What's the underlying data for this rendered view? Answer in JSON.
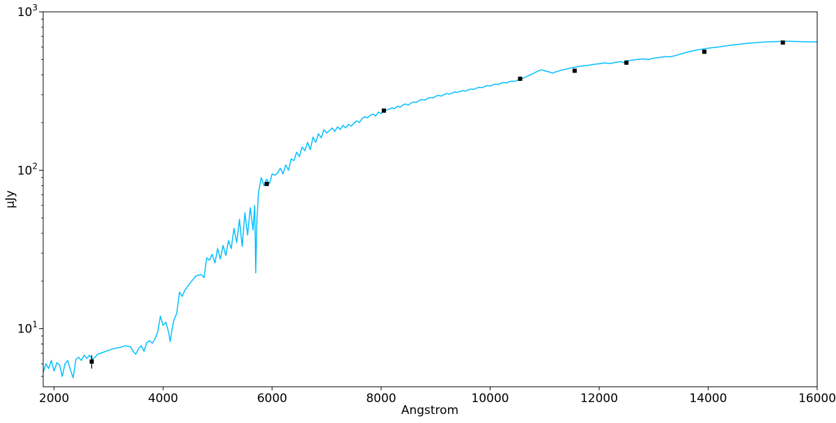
{
  "chart_data": {
    "type": "line",
    "xlabel": "Angstrom",
    "ylabel": "μJy",
    "xlim": [
      1800,
      16000
    ],
    "ylim": [
      4.3,
      1000
    ],
    "yscale": "log",
    "grid": false,
    "x_ticks": [
      {
        "value": 2000,
        "label": "2000"
      },
      {
        "value": 4000,
        "label": "4000"
      },
      {
        "value": 6000,
        "label": "6000"
      },
      {
        "value": 8000,
        "label": "8000"
      },
      {
        "value": 10000,
        "label": "10000"
      },
      {
        "value": 12000,
        "label": "12000"
      },
      {
        "value": 14000,
        "label": "14000"
      },
      {
        "value": 16000,
        "label": "16000"
      }
    ],
    "y_ticks": [
      {
        "value": 10,
        "base": "10",
        "exp": "1"
      },
      {
        "value": 100,
        "base": "10",
        "exp": "2"
      },
      {
        "value": 1000,
        "base": "10",
        "exp": "3"
      }
    ],
    "series": [
      {
        "kind": "line",
        "color": "#00bfff",
        "points": [
          [
            1800,
            5.3
          ],
          [
            1850,
            6.0
          ],
          [
            1900,
            5.6
          ],
          [
            1950,
            6.3
          ],
          [
            2000,
            5.4
          ],
          [
            2050,
            6.1
          ],
          [
            2100,
            5.9
          ],
          [
            2150,
            5.0
          ],
          [
            2200,
            6.0
          ],
          [
            2250,
            6.3
          ],
          [
            2300,
            5.5
          ],
          [
            2350,
            4.9
          ],
          [
            2400,
            6.4
          ],
          [
            2450,
            6.6
          ],
          [
            2500,
            6.3
          ],
          [
            2550,
            6.8
          ],
          [
            2600,
            6.5
          ],
          [
            2650,
            6.8
          ],
          [
            2700,
            6.4
          ],
          [
            2750,
            6.6
          ],
          [
            2800,
            6.9
          ],
          [
            2900,
            7.1
          ],
          [
            3000,
            7.3
          ],
          [
            3100,
            7.5
          ],
          [
            3200,
            7.6
          ],
          [
            3300,
            7.8
          ],
          [
            3400,
            7.7
          ],
          [
            3450,
            7.2
          ],
          [
            3500,
            6.9
          ],
          [
            3550,
            7.5
          ],
          [
            3600,
            7.8
          ],
          [
            3650,
            7.2
          ],
          [
            3700,
            8.2
          ],
          [
            3750,
            8.4
          ],
          [
            3800,
            8.1
          ],
          [
            3850,
            8.6
          ],
          [
            3900,
            9.5
          ],
          [
            3950,
            12.0
          ],
          [
            4000,
            10.5
          ],
          [
            4050,
            11.0
          ],
          [
            4100,
            9.5
          ],
          [
            4130,
            8.3
          ],
          [
            4170,
            10.2
          ],
          [
            4200,
            11.4
          ],
          [
            4250,
            12.5
          ],
          [
            4300,
            17.0
          ],
          [
            4350,
            16.0
          ],
          [
            4400,
            17.5
          ],
          [
            4500,
            19.5
          ],
          [
            4600,
            21.5
          ],
          [
            4700,
            22.0
          ],
          [
            4750,
            21.0
          ],
          [
            4800,
            28.0
          ],
          [
            4850,
            27.0
          ],
          [
            4900,
            29.5
          ],
          [
            4950,
            26.0
          ],
          [
            5000,
            32.0
          ],
          [
            5050,
            27.5
          ],
          [
            5100,
            33.5
          ],
          [
            5150,
            29.0
          ],
          [
            5200,
            36.0
          ],
          [
            5250,
            32.0
          ],
          [
            5300,
            43.0
          ],
          [
            5350,
            35.0
          ],
          [
            5400,
            49.0
          ],
          [
            5450,
            33.0
          ],
          [
            5500,
            54.0
          ],
          [
            5550,
            39.0
          ],
          [
            5600,
            58.0
          ],
          [
            5650,
            42.0
          ],
          [
            5680,
            60.0
          ],
          [
            5700,
            22.5
          ],
          [
            5720,
            48.0
          ],
          [
            5750,
            72.0
          ],
          [
            5800,
            90.0
          ],
          [
            5850,
            80.0
          ],
          [
            5900,
            88.0
          ],
          [
            5950,
            82.0
          ],
          [
            6000,
            95.0
          ],
          [
            6050,
            93.0
          ],
          [
            6100,
            96.0
          ],
          [
            6150,
            103.0
          ],
          [
            6200,
            95.0
          ],
          [
            6250,
            108.0
          ],
          [
            6300,
            100.0
          ],
          [
            6350,
            118.0
          ],
          [
            6400,
            115.0
          ],
          [
            6450,
            130.0
          ],
          [
            6500,
            122.0
          ],
          [
            6550,
            140.0
          ],
          [
            6600,
            133.0
          ],
          [
            6650,
            150.0
          ],
          [
            6700,
            135.0
          ],
          [
            6750,
            162.0
          ],
          [
            6800,
            150.0
          ],
          [
            6850,
            170.0
          ],
          [
            6900,
            160.0
          ],
          [
            6950,
            180.0
          ],
          [
            7000,
            172.0
          ],
          [
            7050,
            178.0
          ],
          [
            7100,
            185.0
          ],
          [
            7150,
            176.0
          ],
          [
            7200,
            188.0
          ],
          [
            7250,
            181.0
          ],
          [
            7300,
            192.0
          ],
          [
            7350,
            185.0
          ],
          [
            7400,
            195.0
          ],
          [
            7450,
            190.0
          ],
          [
            7500,
            198.0
          ],
          [
            7550,
            205.0
          ],
          [
            7600,
            200.0
          ],
          [
            7650,
            212.0
          ],
          [
            7700,
            218.0
          ],
          [
            7750,
            214.0
          ],
          [
            7800,
            222.0
          ],
          [
            7850,
            226.0
          ],
          [
            7900,
            220.0
          ],
          [
            7950,
            233.0
          ],
          [
            8000,
            228.0
          ],
          [
            8050,
            236.0
          ],
          [
            8100,
            240.0
          ],
          [
            8150,
            243.0
          ],
          [
            8200,
            248.0
          ],
          [
            8250,
            245.0
          ],
          [
            8300,
            254.0
          ],
          [
            8350,
            250.0
          ],
          [
            8400,
            259.0
          ],
          [
            8450,
            262.0
          ],
          [
            8500,
            258.0
          ],
          [
            8550,
            266.0
          ],
          [
            8600,
            270.0
          ],
          [
            8650,
            268.0
          ],
          [
            8700,
            276.0
          ],
          [
            8750,
            280.0
          ],
          [
            8800,
            277.0
          ],
          [
            8850,
            284.0
          ],
          [
            8900,
            288.0
          ],
          [
            8950,
            286.0
          ],
          [
            9000,
            293.0
          ],
          [
            9050,
            297.0
          ],
          [
            9100,
            294.0
          ],
          [
            9150,
            300.0
          ],
          [
            9200,
            305.0
          ],
          [
            9250,
            302.0
          ],
          [
            9300,
            308.0
          ],
          [
            9350,
            312.0
          ],
          [
            9400,
            310.0
          ],
          [
            9450,
            315.0
          ],
          [
            9500,
            318.0
          ],
          [
            9550,
            316.0
          ],
          [
            9600,
            322.0
          ],
          [
            9650,
            326.0
          ],
          [
            9700,
            324.0
          ],
          [
            9750,
            330.0
          ],
          [
            9800,
            334.0
          ],
          [
            9850,
            332.0
          ],
          [
            9900,
            338.0
          ],
          [
            9950,
            342.0
          ],
          [
            10000,
            340.0
          ],
          [
            10050,
            346.0
          ],
          [
            10100,
            350.0
          ],
          [
            10150,
            348.0
          ],
          [
            10200,
            354.0
          ],
          [
            10250,
            358.0
          ],
          [
            10300,
            356.0
          ],
          [
            10350,
            362.0
          ],
          [
            10400,
            366.0
          ],
          [
            10450,
            364.0
          ],
          [
            10500,
            370.0
          ],
          [
            10550,
            374.0
          ],
          [
            10600,
            380.0
          ],
          [
            10650,
            388.0
          ],
          [
            10700,
            395.0
          ],
          [
            10750,
            402.0
          ],
          [
            10800,
            410.0
          ],
          [
            10850,
            418.0
          ],
          [
            10900,
            426.0
          ],
          [
            10950,
            430.0
          ],
          [
            11000,
            425.0
          ],
          [
            11050,
            420.0
          ],
          [
            11100,
            416.0
          ],
          [
            11150,
            410.0
          ],
          [
            11200,
            418.0
          ],
          [
            11250,
            422.0
          ],
          [
            11300,
            428.0
          ],
          [
            11350,
            432.0
          ],
          [
            11400,
            435.0
          ],
          [
            11450,
            440.0
          ],
          [
            11500,
            444.0
          ],
          [
            11600,
            450.0
          ],
          [
            11700,
            456.0
          ],
          [
            11800,
            460.0
          ],
          [
            11900,
            466.0
          ],
          [
            12000,
            470.0
          ],
          [
            12100,
            476.0
          ],
          [
            12200,
            472.0
          ],
          [
            12300,
            480.0
          ],
          [
            12400,
            485.0
          ],
          [
            12450,
            478.0
          ],
          [
            12500,
            490.0
          ],
          [
            12600,
            495.0
          ],
          [
            12700,
            500.0
          ],
          [
            12800,
            505.0
          ],
          [
            12900,
            500.0
          ],
          [
            13000,
            510.0
          ],
          [
            13100,
            515.0
          ],
          [
            13200,
            522.0
          ],
          [
            13300,
            520.0
          ],
          [
            13400,
            530.0
          ],
          [
            13500,
            542.0
          ],
          [
            13600,
            555.0
          ],
          [
            13700,
            565.0
          ],
          [
            13800,
            575.0
          ],
          [
            13900,
            582.0
          ],
          [
            14000,
            590.0
          ],
          [
            14100,
            595.0
          ],
          [
            14200,
            600.0
          ],
          [
            14300,
            608.0
          ],
          [
            14400,
            615.0
          ],
          [
            14500,
            620.0
          ],
          [
            14600,
            626.0
          ],
          [
            14700,
            632.0
          ],
          [
            14800,
            636.0
          ],
          [
            14900,
            640.0
          ],
          [
            15000,
            644.0
          ],
          [
            15100,
            646.0
          ],
          [
            15200,
            648.0
          ],
          [
            15300,
            650.0
          ],
          [
            15400,
            652.0
          ],
          [
            15500,
            652.0
          ],
          [
            15600,
            650.0
          ],
          [
            15700,
            648.0
          ],
          [
            15800,
            647.0
          ],
          [
            15900,
            646.0
          ],
          [
            16000,
            646.0
          ]
        ]
      },
      {
        "kind": "points",
        "marker": "square",
        "color": "#000000",
        "points": [
          {
            "x": 2690,
            "y": 6.2,
            "yerr": [
              5.6,
              6.8
            ]
          },
          {
            "x": 5900,
            "y": 82.0
          },
          {
            "x": 8050,
            "y": 238.0
          },
          {
            "x": 10550,
            "y": 378.0
          },
          {
            "x": 11550,
            "y": 425.0
          },
          {
            "x": 12500,
            "y": 478.0
          },
          {
            "x": 13930,
            "y": 560.0
          },
          {
            "x": 15370,
            "y": 640.0
          }
        ]
      }
    ]
  }
}
